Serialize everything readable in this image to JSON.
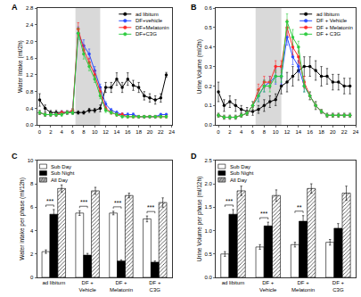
{
  "chart_data": [
    {
      "type": "line",
      "title": "A",
      "y_label": "Water Intake (ml/2h)",
      "grid": false,
      "marker": "circle",
      "legend": "top right",
      "x": [
        0,
        1,
        2,
        3,
        4,
        5,
        6,
        7,
        8,
        9,
        10,
        11,
        12,
        13,
        14,
        15,
        16,
        17,
        18,
        19,
        20,
        21,
        22,
        23
      ],
      "xlim": [
        -0.5,
        24
      ],
      "xticks": [
        0,
        2,
        4,
        6,
        8,
        10,
        12,
        14,
        16,
        18,
        20,
        22,
        24
      ],
      "ylim": [
        0,
        2.8
      ],
      "yticks": [
        {
          "value": 0,
          "label": "0.0"
        },
        0.4,
        0.8,
        1.2,
        1.6,
        {
          "value": 2,
          "label": "2.0"
        },
        2.4,
        2.8
      ],
      "shaded_x": [
        6.5,
        11
      ],
      "series": [
        {
          "name": "ad libitum",
          "color": "#000000",
          "values": [
            0.6,
            0.4,
            0.3,
            0.3,
            0.3,
            0.3,
            0.3,
            0.3,
            0.3,
            0.35,
            0.35,
            0.4,
            0.9,
            0.9,
            1.1,
            0.9,
            1.1,
            0.95,
            0.9,
            0.7,
            0.65,
            0.6,
            0.65,
            1.2
          ],
          "errors": [
            0.15,
            0.08,
            0.05,
            0.05,
            0.04,
            0.04,
            0.04,
            0.04,
            0.04,
            0.05,
            0.05,
            0.08,
            0.12,
            0.12,
            0.15,
            0.12,
            0.15,
            0.12,
            0.12,
            0.1,
            0.1,
            0.1,
            0.1,
            0.06
          ]
        },
        {
          "name": "DF+vehicle",
          "color": "#2b4cff",
          "values": [
            0.3,
            0.25,
            0.25,
            0.25,
            0.3,
            0.3,
            0.35,
            2.2,
            1.9,
            1.7,
            1.3,
            0.9,
            0.5,
            0.35,
            0.3,
            0.25,
            0.25,
            0.25,
            0.2,
            0.2,
            0.2,
            0.2,
            0.25,
            0.25
          ],
          "errors": [
            0.05,
            0.04,
            0.04,
            0.04,
            0.04,
            0.04,
            0.05,
            0.15,
            0.14,
            0.12,
            0.1,
            0.08,
            0.06,
            0.05,
            0.04,
            0.04,
            0.04,
            0.04,
            0.03,
            0.03,
            0.03,
            0.03,
            0.03,
            0.03
          ]
        },
        {
          "name": "DF+Melatonin",
          "color": "#ff2a2a",
          "values": [
            0.3,
            0.25,
            0.25,
            0.25,
            0.3,
            0.3,
            0.35,
            2.3,
            1.8,
            1.5,
            1.2,
            0.8,
            0.4,
            0.3,
            0.25,
            0.25,
            0.2,
            0.2,
            0.2,
            0.2,
            0.2,
            0.2,
            0.2,
            0.2
          ],
          "errors": [
            0.05,
            0.04,
            0.04,
            0.04,
            0.04,
            0.04,
            0.05,
            0.15,
            0.12,
            0.1,
            0.1,
            0.08,
            0.05,
            0.04,
            0.04,
            0.04,
            0.03,
            0.03,
            0.03,
            0.03,
            0.03,
            0.03,
            0.03,
            0.03
          ]
        },
        {
          "name": "DF+C3G",
          "color": "#2ecc40",
          "values": [
            0.3,
            0.25,
            0.25,
            0.25,
            0.25,
            0.3,
            0.3,
            2.2,
            1.7,
            1.4,
            1.1,
            0.7,
            0.35,
            0.3,
            0.25,
            0.2,
            0.2,
            0.2,
            0.2,
            0.2,
            0.2,
            0.2,
            0.2,
            0.2
          ],
          "errors": [
            0.05,
            0.04,
            0.04,
            0.04,
            0.04,
            0.04,
            0.05,
            0.12,
            0.12,
            0.1,
            0.08,
            0.07,
            0.05,
            0.04,
            0.04,
            0.03,
            0.03,
            0.03,
            0.03,
            0.03,
            0.03,
            0.03,
            0.03,
            0.03
          ]
        }
      ]
    },
    {
      "type": "line",
      "title": "B",
      "y_label": "Urine Volume (ml/2h)",
      "grid": false,
      "marker": "circle",
      "legend": "top right",
      "x": [
        0,
        1,
        2,
        3,
        4,
        5,
        6,
        7,
        8,
        9,
        10,
        11,
        12,
        13,
        14,
        15,
        16,
        17,
        18,
        19,
        20,
        21,
        22,
        23
      ],
      "xlim": [
        -0.5,
        24
      ],
      "xticks": [
        0,
        2,
        4,
        6,
        8,
        10,
        12,
        14,
        16,
        18,
        20,
        22,
        24
      ],
      "ylim": [
        0,
        0.6
      ],
      "yticks": [
        {
          "value": 0,
          "label": "0.0"
        },
        0.1,
        0.2,
        0.3,
        0.4,
        0.5,
        0.6
      ],
      "shaded_x": [
        6.5,
        11
      ],
      "series": [
        {
          "name": "ad libitum",
          "color": "#000000",
          "values": [
            0.17,
            0.1,
            0.12,
            0.1,
            0.08,
            0.07,
            0.07,
            0.08,
            0.1,
            0.12,
            0.13,
            0.2,
            0.22,
            0.25,
            0.28,
            0.3,
            0.3,
            0.28,
            0.25,
            0.25,
            0.22,
            0.22,
            0.2,
            0.2
          ],
          "errors": [
            0.05,
            0.03,
            0.03,
            0.03,
            0.02,
            0.02,
            0.02,
            0.02,
            0.03,
            0.03,
            0.03,
            0.04,
            0.05,
            0.05,
            0.05,
            0.05,
            0.05,
            0.05,
            0.05,
            0.04,
            0.04,
            0.04,
            0.04,
            0.04
          ]
        },
        {
          "name": "DF + Vehicle",
          "color": "#2b4cff",
          "values": [
            0.05,
            0.04,
            0.04,
            0.04,
            0.05,
            0.06,
            0.1,
            0.15,
            0.2,
            0.22,
            0.25,
            0.25,
            0.45,
            0.35,
            0.3,
            0.2,
            0.15,
            0.1,
            0.07,
            0.05,
            0.05,
            0.05,
            0.05,
            0.05
          ],
          "errors": [
            0.01,
            0.01,
            0.01,
            0.01,
            0.01,
            0.01,
            0.02,
            0.03,
            0.03,
            0.03,
            0.04,
            0.04,
            0.04,
            0.04,
            0.03,
            0.03,
            0.02,
            0.02,
            0.01,
            0.01,
            0.01,
            0.01,
            0.01,
            0.01
          ]
        },
        {
          "name": "DF + Melatonin",
          "color": "#ff2a2a",
          "values": [
            0.05,
            0.04,
            0.04,
            0.04,
            0.05,
            0.06,
            0.1,
            0.18,
            0.22,
            0.22,
            0.3,
            0.3,
            0.5,
            0.4,
            0.35,
            0.22,
            0.15,
            0.1,
            0.07,
            0.05,
            0.05,
            0.05,
            0.05,
            0.05
          ],
          "errors": [
            0.01,
            0.01,
            0.01,
            0.01,
            0.01,
            0.01,
            0.02,
            0.03,
            0.03,
            0.03,
            0.03,
            0.03,
            0.04,
            0.04,
            0.03,
            0.03,
            0.02,
            0.02,
            0.01,
            0.01,
            0.01,
            0.01,
            0.01,
            0.01
          ]
        },
        {
          "name": "DF + C3G",
          "color": "#2ecc40",
          "values": [
            0.05,
            0.04,
            0.04,
            0.04,
            0.05,
            0.06,
            0.1,
            0.15,
            0.2,
            0.2,
            0.25,
            0.25,
            0.53,
            0.45,
            0.4,
            0.2,
            0.15,
            0.1,
            0.07,
            0.05,
            0.05,
            0.05,
            0.05,
            0.05
          ],
          "errors": [
            0.01,
            0.01,
            0.01,
            0.01,
            0.01,
            0.01,
            0.02,
            0.03,
            0.03,
            0.03,
            0.03,
            0.03,
            0.04,
            0.04,
            0.03,
            0.03,
            0.02,
            0.02,
            0.01,
            0.01,
            0.01,
            0.01,
            0.01,
            0.01
          ]
        }
      ]
    },
    {
      "type": "bar",
      "title": "C",
      "y_label": "Water intake per phase (ml/12h)",
      "grid": false,
      "legend": "top left",
      "categories": [
        "ad libitum",
        "DF + Vehicle",
        "DF + Melatonin",
        "DF + C3G"
      ],
      "ylim": [
        0,
        10
      ],
      "yticks": [
        0,
        2,
        4,
        6,
        8,
        10
      ],
      "significance": [
        "***",
        "***",
        "***",
        "***"
      ],
      "series": [
        {
          "name": "Sub Day",
          "color": "#ffffff",
          "values": [
            2.2,
            5.5,
            5.5,
            5.0
          ],
          "errors": [
            0.15,
            0.2,
            0.15,
            0.25
          ]
        },
        {
          "name": "Sub Night",
          "color": "#000000",
          "values": [
            5.4,
            1.9,
            1.4,
            1.3
          ],
          "errors": [
            0.4,
            0.15,
            0.1,
            0.1
          ]
        },
        {
          "name": "All Day",
          "color": "#aaaaaa",
          "marker": "hatched",
          "values": [
            7.6,
            7.4,
            7.0,
            6.4
          ],
          "errors": [
            0.3,
            0.3,
            0.2,
            0.4
          ]
        }
      ]
    },
    {
      "type": "bar",
      "title": "D",
      "y_label": "Urine Volume per phase (ml/12h)",
      "grid": false,
      "legend": "top left",
      "categories": [
        "ad libitum",
        "DF + Vehicle",
        "DF + Melatonin",
        "DF + C3G"
      ],
      "ylim": [
        0,
        2.5
      ],
      "yticks": [
        {
          "value": 0,
          "label": "0.0"
        },
        0.5,
        {
          "value": 1,
          "label": "1.0"
        },
        1.5,
        {
          "value": 2,
          "label": "2.0"
        },
        2.5
      ],
      "significance": [
        "***",
        "***",
        "**",
        null
      ],
      "series": [
        {
          "name": "Sub Day",
          "color": "#ffffff",
          "values": [
            0.5,
            0.65,
            0.7,
            0.75
          ],
          "errors": [
            0.05,
            0.05,
            0.05,
            0.06
          ]
        },
        {
          "name": "Sub Night",
          "color": "#000000",
          "values": [
            1.35,
            1.1,
            1.2,
            1.05
          ],
          "errors": [
            0.1,
            0.08,
            0.12,
            0.1
          ]
        },
        {
          "name": "All Day",
          "color": "#aaaaaa",
          "marker": "hatched",
          "values": [
            1.85,
            1.75,
            1.9,
            1.8
          ],
          "errors": [
            0.1,
            0.12,
            0.1,
            0.15
          ]
        }
      ]
    }
  ]
}
